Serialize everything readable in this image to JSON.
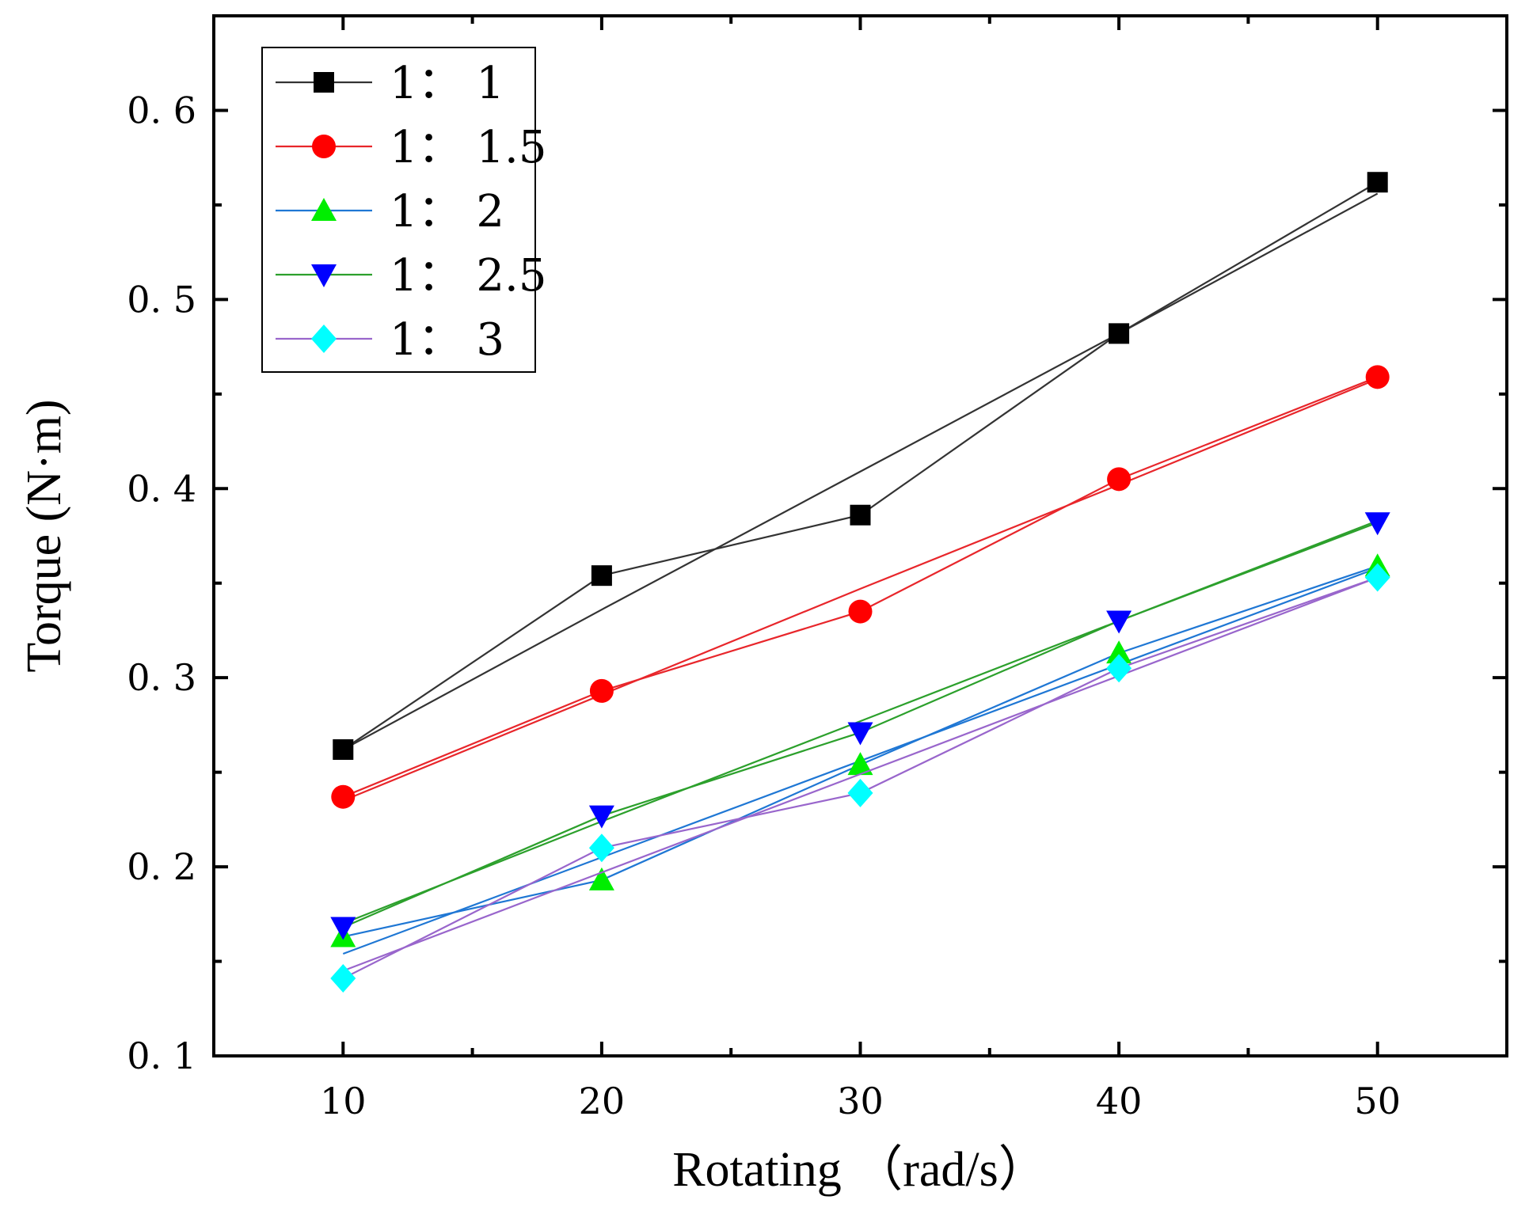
{
  "chart_data": {
    "type": "line",
    "title": "",
    "xlabel": "Rotating （rad/s）",
    "ylabel": "Torque (N·m)",
    "xlim": [
      5,
      55
    ],
    "ylim": [
      0.1,
      0.65
    ],
    "x": [
      10,
      20,
      30,
      40,
      50
    ],
    "x_ticks": [
      10,
      20,
      30,
      40,
      50
    ],
    "x_tick_labels": [
      "10",
      "20",
      "30",
      "40",
      "50"
    ],
    "y_ticks": [
      0.1,
      0.2,
      0.3,
      0.4,
      0.5,
      0.6
    ],
    "y_tick_labels": [
      "0. 1",
      "0. 2",
      "0. 3",
      "0. 4",
      "0. 5",
      "0. 6"
    ],
    "grid": false,
    "legend_position": "top-left",
    "series": [
      {
        "name": "1： 1",
        "legend_label": "1： 1",
        "marker": "square",
        "marker_color": "#000000",
        "line_color": "#333333",
        "values": [
          0.262,
          0.354,
          0.386,
          0.482,
          0.562
        ],
        "fit": [
          0.262,
          0.336,
          0.409,
          0.482,
          0.556
        ]
      },
      {
        "name": "1： 1.5",
        "legend_label": "1： 1.5",
        "marker": "circle",
        "marker_color": "#ff0000",
        "line_color": "#e8262b",
        "values": [
          0.237,
          0.293,
          0.335,
          0.405,
          0.459
        ],
        "fit": [
          0.235,
          0.291,
          0.347,
          0.402,
          0.458
        ]
      },
      {
        "name": "1： 2",
        "legend_label": "1： 2",
        "marker": "triangle-up",
        "marker_color": "#00ee00",
        "line_color": "#1f77d4",
        "values": [
          0.163,
          0.193,
          0.254,
          0.313,
          0.359
        ],
        "fit": [
          0.154,
          0.205,
          0.256,
          0.307,
          0.358
        ]
      },
      {
        "name": "1： 2.5",
        "legend_label": "1： 2.5",
        "marker": "triangle-down",
        "marker_color": "#0000ff",
        "line_color": "#2ca02c",
        "values": [
          0.168,
          0.227,
          0.271,
          0.33,
          0.382
        ],
        "fit": [
          0.17,
          0.224,
          0.277,
          0.33,
          0.383
        ]
      },
      {
        "name": "1： 3",
        "legend_label": "1： 3",
        "marker": "diamond",
        "marker_color": "#00ffff",
        "line_color": "#9966cc",
        "values": [
          0.141,
          0.21,
          0.239,
          0.305,
          0.353
        ],
        "fit": [
          0.145,
          0.197,
          0.249,
          0.301,
          0.353
        ]
      }
    ]
  }
}
